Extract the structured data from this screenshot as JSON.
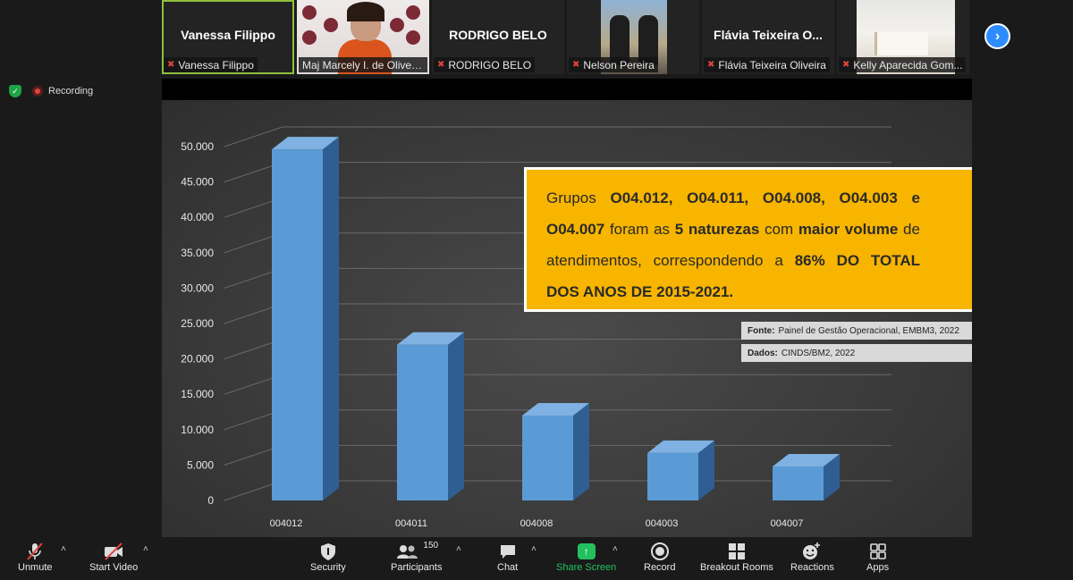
{
  "participants": [
    {
      "big_name": "Vanessa Filippo",
      "label": "Vanessa Filippo",
      "active": true
    },
    {
      "big_name": "",
      "label": "Maj Marcely I. de Oliveir..."
    },
    {
      "big_name": "RODRIGO BELO",
      "label": "RODRIGO BELO"
    },
    {
      "big_name": "",
      "label": "Nelson Pereira"
    },
    {
      "big_name": "Flávia Teixeira O...",
      "label": "Flávia Teixeira Oliveira"
    },
    {
      "big_name": "",
      "label": "Kelly Aparecida Gom..."
    }
  ],
  "status": {
    "recording_label": "Recording"
  },
  "slide": {
    "callout": {
      "p1": "Grupos",
      "codes": "O04.012, O04.011, O04.008, O04.003",
      "p2": "e",
      "code_last": "O04.007",
      "p3": "foram as",
      "count": "5 naturezas",
      "p4": "com",
      "volume": "maior volume",
      "p5": "de atendimentos, correspondendo a",
      "pct": "86% DO TOTAL DOS ANOS DE 2015-2021."
    },
    "source_label": "Fonte:",
    "source_text": "Painel de Gestão Operacional, EMBM3, 2022",
    "data_label": "Dados:",
    "data_text": "CINDS/BM2, 2022"
  },
  "chart_data": {
    "type": "bar",
    "categories": [
      "004012",
      "004011",
      "004008",
      "004003",
      "004007"
    ],
    "values": [
      49600,
      22000,
      12000,
      6700,
      4800
    ],
    "ylim": [
      0,
      50000
    ],
    "yticks": [
      "0",
      "5.000",
      "10.000",
      "15.000",
      "20.000",
      "25.000",
      "30.000",
      "35.000",
      "40.000",
      "45.000",
      "50.000"
    ],
    "bar_color": "#5b9bd5",
    "grid": true
  },
  "toolbar": {
    "unmute": "Unmute",
    "start_video": "Start Video",
    "security": "Security",
    "participants": "Participants",
    "participants_count": "150",
    "chat": "Chat",
    "share_screen": "Share Screen",
    "record": "Record",
    "breakout_rooms": "Breakout Rooms",
    "reactions": "Reactions",
    "apps": "Apps"
  }
}
